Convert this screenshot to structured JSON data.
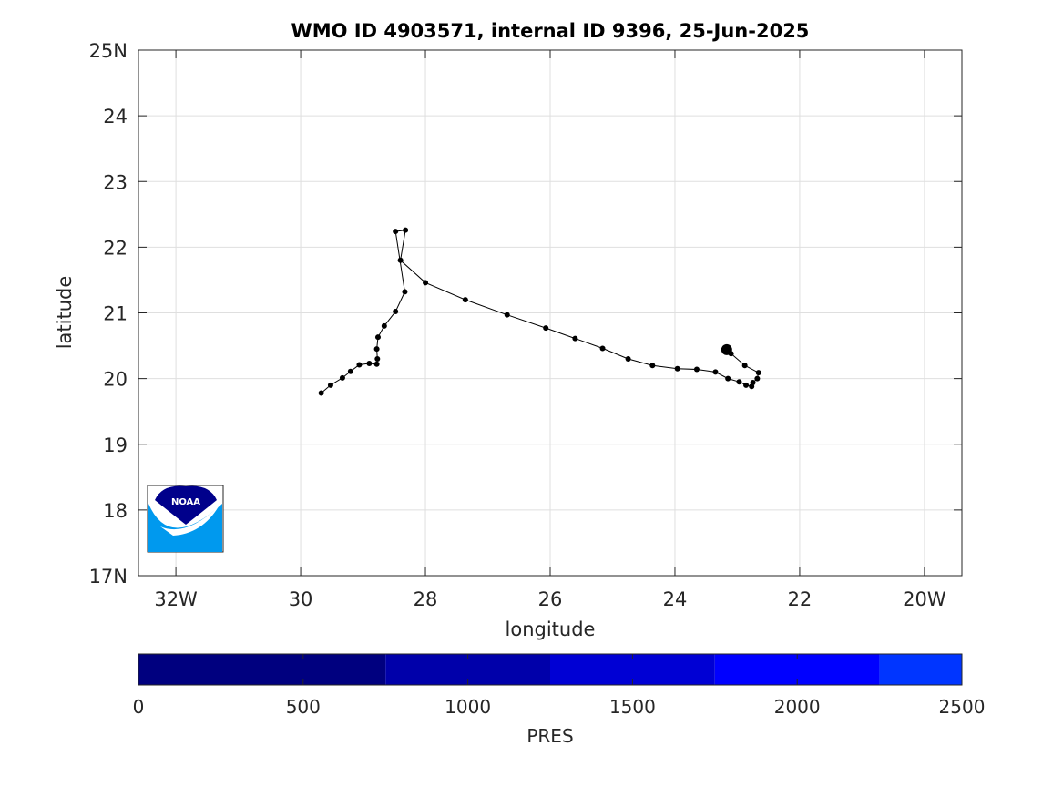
{
  "chart_data": {
    "type": "scatter",
    "title": "WMO ID 4903571, internal ID 9396, 25-Jun-2025",
    "xlabel": "longitude",
    "ylabel": "latitude",
    "xlim": [
      -32.6,
      -19.4
    ],
    "ylim": [
      17,
      25
    ],
    "grid": true,
    "x_ticks": [
      -32,
      -30,
      -28,
      -26,
      -24,
      -22,
      -20
    ],
    "x_tick_labels": [
      "32W",
      "30",
      "28",
      "26",
      "24",
      "22",
      "20W"
    ],
    "y_ticks": [
      17,
      18,
      19,
      20,
      21,
      22,
      23,
      24,
      25
    ],
    "y_tick_labels": [
      "17N",
      "18",
      "19",
      "20",
      "21",
      "22",
      "23",
      "24",
      "25N"
    ],
    "track": {
      "color": "#000000",
      "lon": [
        -29.67,
        -29.52,
        -29.33,
        -29.2,
        -29.06,
        -28.9,
        -28.78,
        -28.77,
        -28.78,
        -28.76,
        -28.66,
        -28.48,
        -28.33,
        -28.48,
        -28.32,
        -28.4,
        -28.0,
        -27.36,
        -26.69,
        -26.07,
        -25.6,
        -25.16,
        -24.75,
        -24.36,
        -23.96,
        -23.65,
        -23.35,
        -23.15,
        -22.97,
        -22.86,
        -22.77,
        -22.75,
        -22.68,
        -22.66,
        -22.88,
        -23.1,
        -23.17
      ],
      "lat": [
        19.78,
        19.9,
        20.01,
        20.11,
        20.21,
        20.23,
        20.22,
        20.3,
        20.45,
        20.63,
        20.8,
        21.02,
        21.32,
        22.24,
        22.26,
        21.8,
        21.46,
        21.2,
        20.97,
        20.77,
        20.61,
        20.46,
        20.3,
        20.2,
        20.15,
        20.14,
        20.1,
        20.0,
        19.95,
        19.9,
        19.88,
        19.94,
        20.0,
        20.09,
        20.2,
        20.38,
        20.44
      ]
    },
    "colorbar": {
      "label": "PRES",
      "range": [
        0,
        2500
      ],
      "ticks": [
        0,
        500,
        1000,
        1500,
        2000,
        2500
      ],
      "segments": [
        {
          "from": 0,
          "to": 750,
          "color": "#00007f"
        },
        {
          "from": 750,
          "to": 1250,
          "color": "#0000aa"
        },
        {
          "from": 1250,
          "to": 1750,
          "color": "#0000d4"
        },
        {
          "from": 1750,
          "to": 2250,
          "color": "#0000ff"
        },
        {
          "from": 2250,
          "to": 2500,
          "color": "#0035ff"
        }
      ]
    },
    "logo": {
      "text": "NOAA",
      "colors": [
        "#00008b",
        "#0099ee"
      ]
    }
  }
}
